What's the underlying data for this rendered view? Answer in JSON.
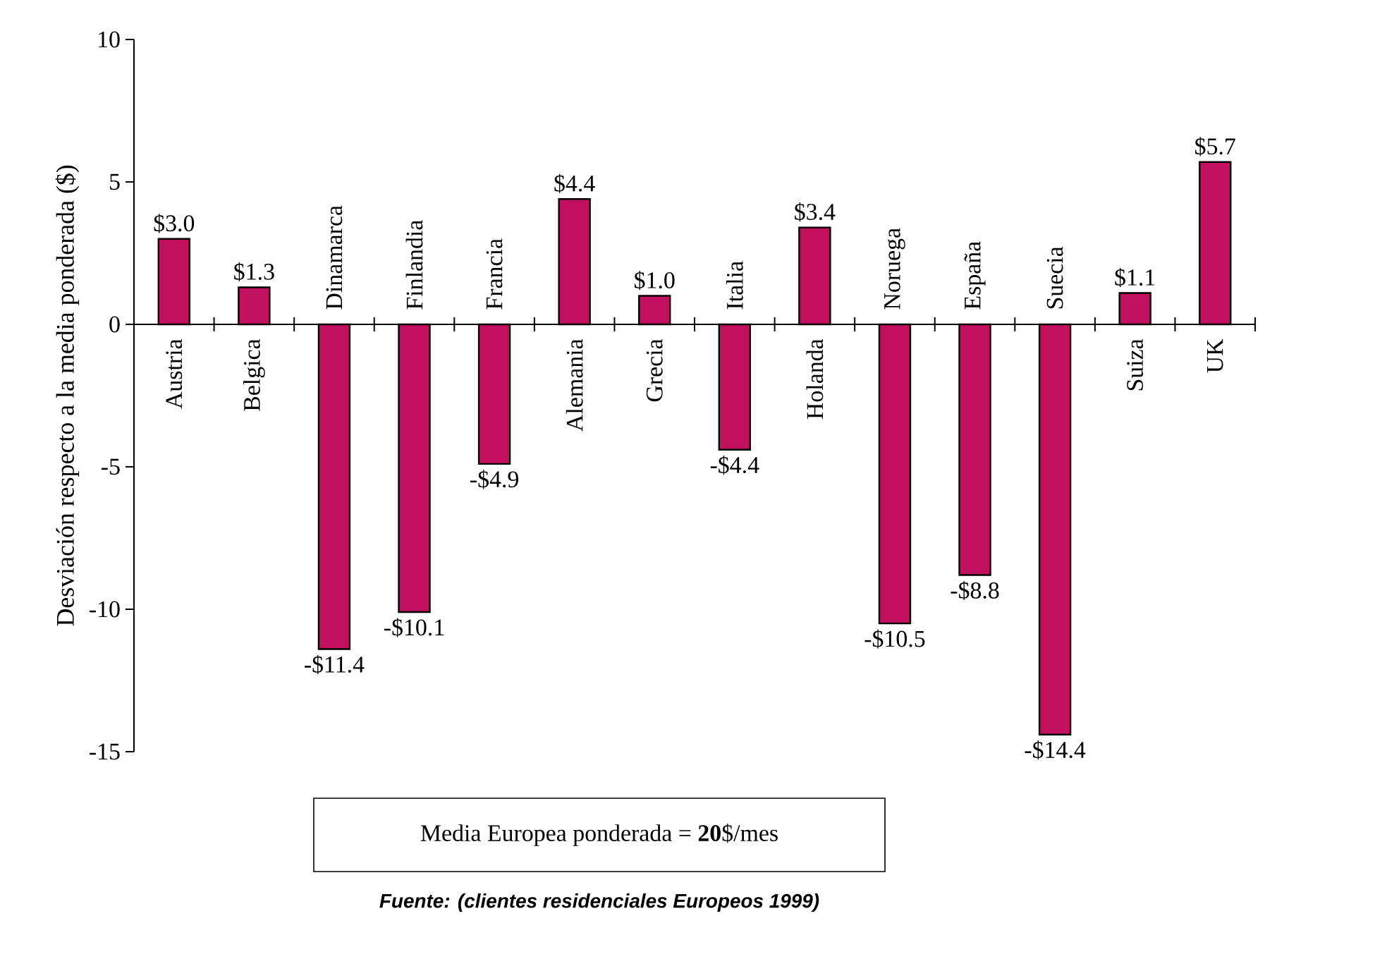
{
  "chart_data": {
    "type": "bar",
    "ylabel": "Desviación respecto a la media ponderada ($)",
    "categories": [
      "Austria",
      "Belgica",
      "Dinamarca",
      "Finlandia",
      "Francia",
      "Alemania",
      "Grecia",
      "Italia",
      "Holanda",
      "Noruega",
      "España",
      "Suecia",
      "Suiza",
      "UK"
    ],
    "values": [
      3.0,
      1.3,
      -11.4,
      -10.1,
      -4.9,
      4.4,
      1.0,
      -4.4,
      3.4,
      -10.5,
      -8.8,
      -14.4,
      1.1,
      5.7
    ],
    "value_labels": [
      "$3.0",
      "$1.3",
      "-$11.4",
      "-$10.1",
      "-$4.9",
      "$4.4",
      "$1.0",
      "-$4.4",
      "$3.4",
      "-$10.5",
      "-$8.8",
      "-$14.4",
      "$1.1",
      "$5.7"
    ],
    "color": "#c0105e",
    "ylim": [
      -15,
      10
    ],
    "yticks": [
      -15,
      -10,
      -5,
      0,
      5,
      10
    ],
    "grid": false,
    "annotations": [
      "Media Europea ponderada = **20**$/mes",
      "Fuente: (clientes residenciales Europeos 1999)"
    ]
  }
}
